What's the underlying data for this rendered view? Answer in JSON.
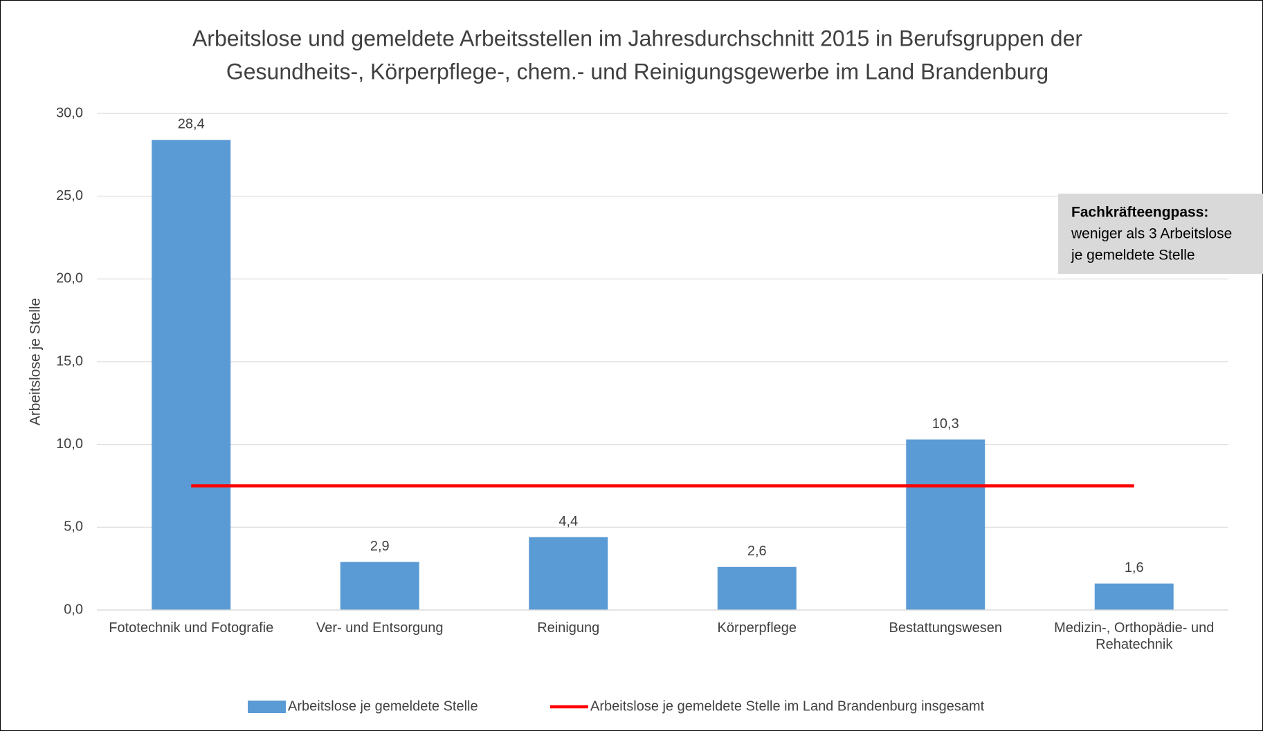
{
  "chart_data": {
    "type": "bar",
    "title": [
      "Arbeitslose und gemeldete Arbeitsstellen im Jahresdurchschnitt 2015 in Berufsgruppen der",
      "Gesundheits-, Körperpflege-, chem.- und Reinigungsgewerbe im Land Brandenburg"
    ],
    "y_label": "Arbeitslose je Stelle",
    "categories": [
      "Fototechnik und Fotografie",
      "Ver- und Entsorgung",
      "Reinigung",
      "Körperpflege",
      "Bestattungswesen",
      "Medizin-, Orthopädie- und Rehatechnik"
    ],
    "series": [
      {
        "name": "Arbeitslose je gemeldete Stelle",
        "color": "#5b9bd5",
        "values": [
          28.4,
          2.9,
          4.4,
          2.6,
          10.3,
          1.6
        ],
        "value_labels": [
          "28,4",
          "2,9",
          "4,4",
          "2,6",
          "10,3",
          "1,6"
        ]
      },
      {
        "name": "Arbeitslose je gemeldete Stelle im Land Brandenburg insgesamt",
        "type": "line",
        "color": "#ff0000",
        "values": [
          7.5,
          7.5,
          7.5,
          7.5,
          7.5,
          7.5
        ]
      }
    ],
    "ylim": [
      0,
      30
    ],
    "yticks": [
      {
        "value": 0,
        "label": "0,0"
      },
      {
        "value": 5,
        "label": "5,0"
      },
      {
        "value": 10,
        "label": "10,0"
      },
      {
        "value": 15,
        "label": "15,0"
      },
      {
        "value": 20,
        "label": "20,0"
      },
      {
        "value": 25,
        "label": "25,0"
      },
      {
        "value": 30,
        "label": "30,0"
      }
    ],
    "grid": true,
    "legend": "bottom",
    "annotation": {
      "heading": "Fachkräfteengpass:",
      "lines": [
        "weniger als 3 Arbeitslose",
        "je gemeldete Stelle"
      ]
    }
  }
}
